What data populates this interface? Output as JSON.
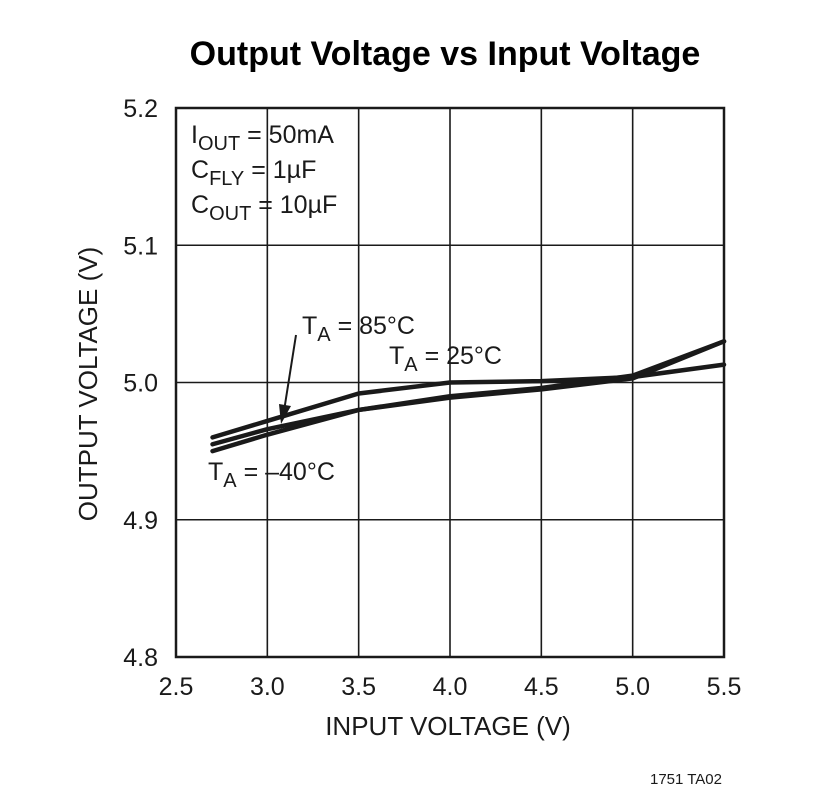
{
  "chart_data": {
    "type": "line",
    "title": "Output Voltage vs Input Voltage",
    "xlabel": "INPUT VOLTAGE (V)",
    "ylabel": "OUTPUT VOLTAGE (V)",
    "xlim": [
      2.5,
      5.5
    ],
    "ylim": [
      4.8,
      5.2
    ],
    "xticks": [
      "2.5",
      "3.0",
      "3.5",
      "4.0",
      "4.5",
      "5.0",
      "5.5"
    ],
    "yticks": [
      "4.8",
      "4.9",
      "5.0",
      "5.1",
      "5.2"
    ],
    "grid": true,
    "conditions": [
      {
        "main": "I",
        "sub": "OUT",
        "rest": " = 50mA"
      },
      {
        "main": "C",
        "sub": "FLY",
        "rest": " = 1µF"
      },
      {
        "main": "C",
        "sub": "OUT",
        "rest": " = 10µF"
      }
    ],
    "series": [
      {
        "name": "TA = 85°C",
        "label_main": "T",
        "label_sub": "A",
        "label_rest": " = 85°C",
        "x": [
          2.7,
          3.0,
          3.5,
          4.0,
          4.5,
          5.0,
          5.5
        ],
        "y": [
          4.96,
          4.972,
          4.992,
          5.0,
          5.001,
          5.004,
          5.013
        ]
      },
      {
        "name": "TA = 25°C",
        "label_main": "T",
        "label_sub": "A",
        "label_rest": " = 25°C",
        "x": [
          2.7,
          3.0,
          3.5,
          4.0,
          4.5,
          5.0,
          5.5
        ],
        "y": [
          4.955,
          4.966,
          4.98,
          4.989,
          4.995,
          5.003,
          5.03
        ]
      },
      {
        "name": "TA = –40°C",
        "label_main": "T",
        "label_sub": "A",
        "label_rest": " = –40°C",
        "x": [
          2.7,
          3.0,
          3.5,
          4.0,
          4.5,
          5.0,
          5.5
        ],
        "y": [
          4.95,
          4.962,
          4.98,
          4.99,
          4.996,
          5.005,
          5.03
        ]
      }
    ],
    "footnote": "1751 TA02"
  }
}
